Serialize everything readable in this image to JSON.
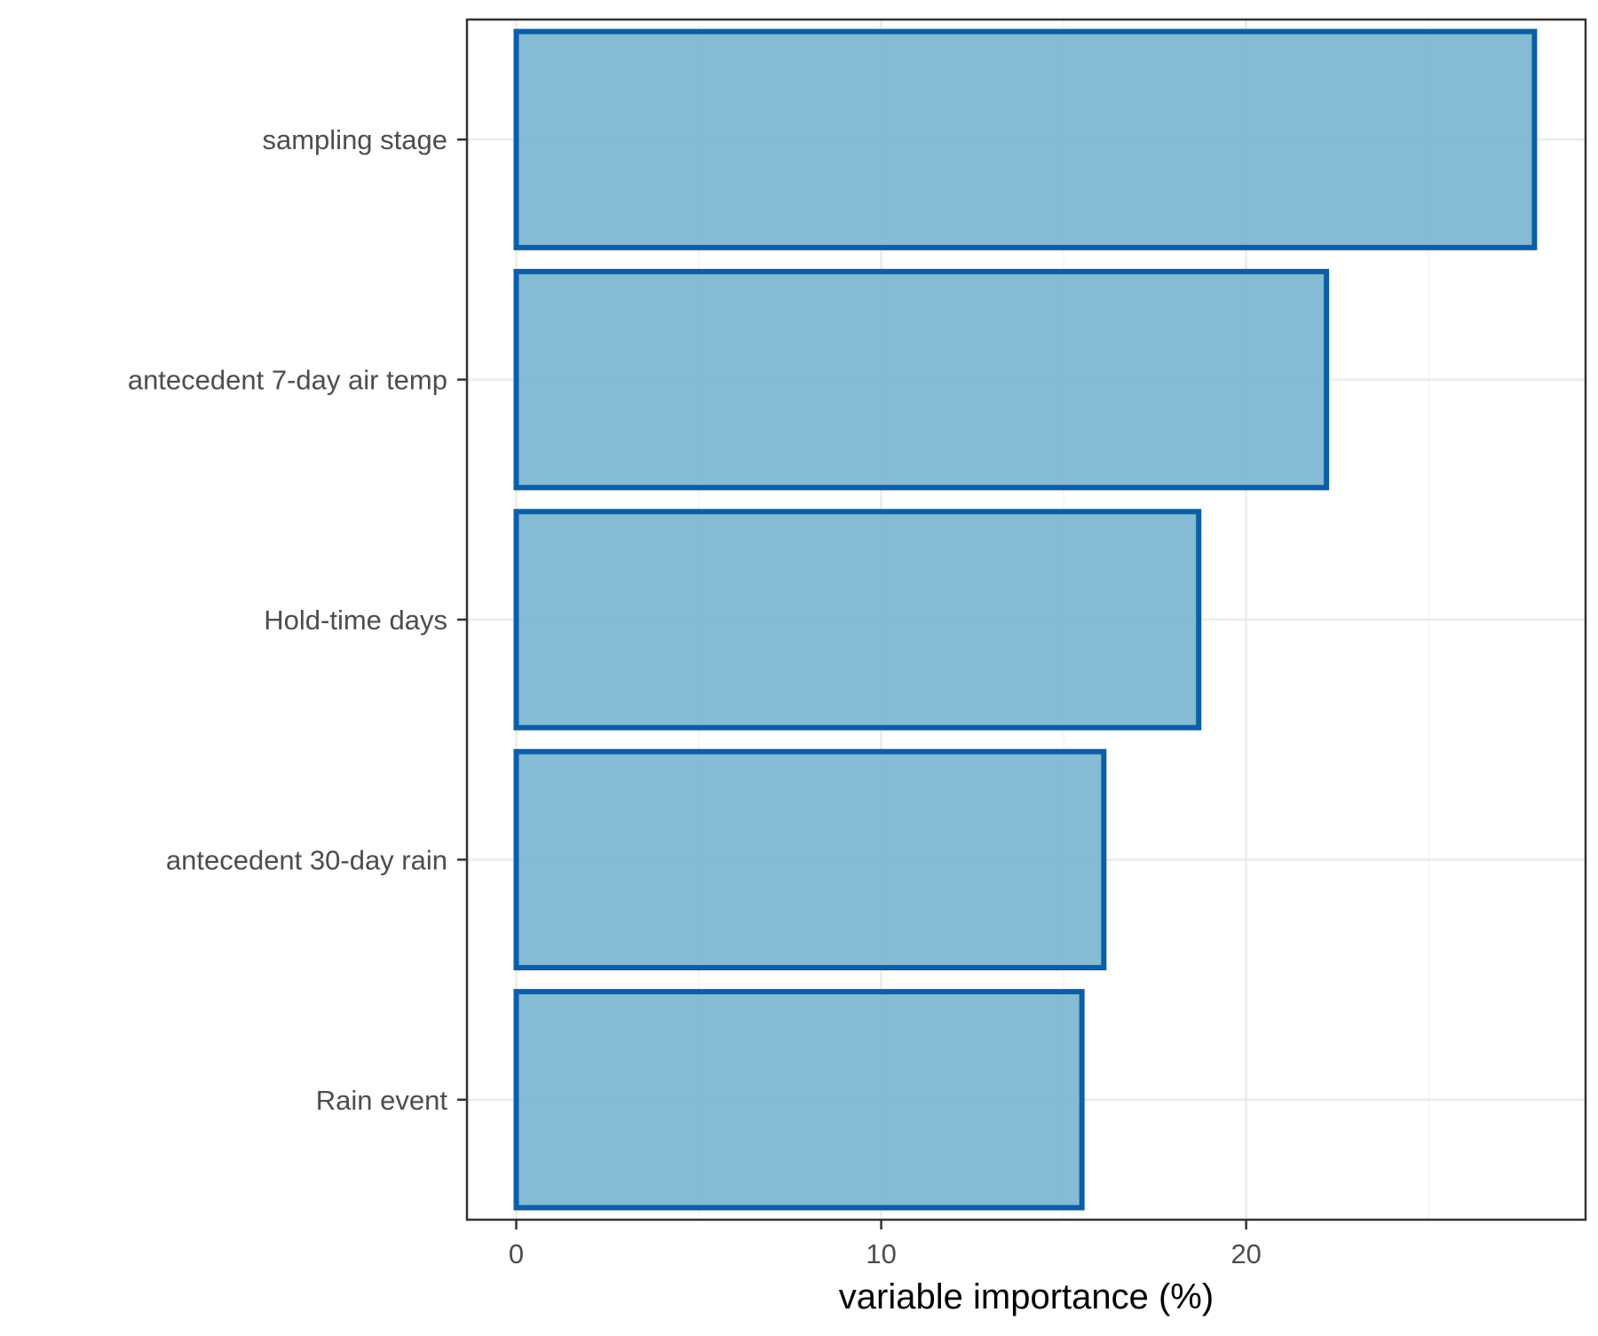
{
  "chart_data": {
    "type": "bar",
    "orientation": "horizontal",
    "categories": [
      "sampling stage",
      "antecedent 7-day air temp",
      "Hold-time days",
      "antecedent 30-day rain",
      "Rain event"
    ],
    "values": [
      27.9,
      22.2,
      18.7,
      16.1,
      15.5
    ],
    "xlabel": "variable importance (%)",
    "ylabel": "",
    "xlim": [
      -1.35,
      29.3
    ],
    "xticks": [
      0,
      10,
      20
    ],
    "grid": true,
    "legend": "none",
    "colors": {
      "bar_fill": "#78b4cf",
      "bar_outline": "#0b5ea8",
      "panel_border": "#333333",
      "grid": "#ebebeb"
    }
  }
}
